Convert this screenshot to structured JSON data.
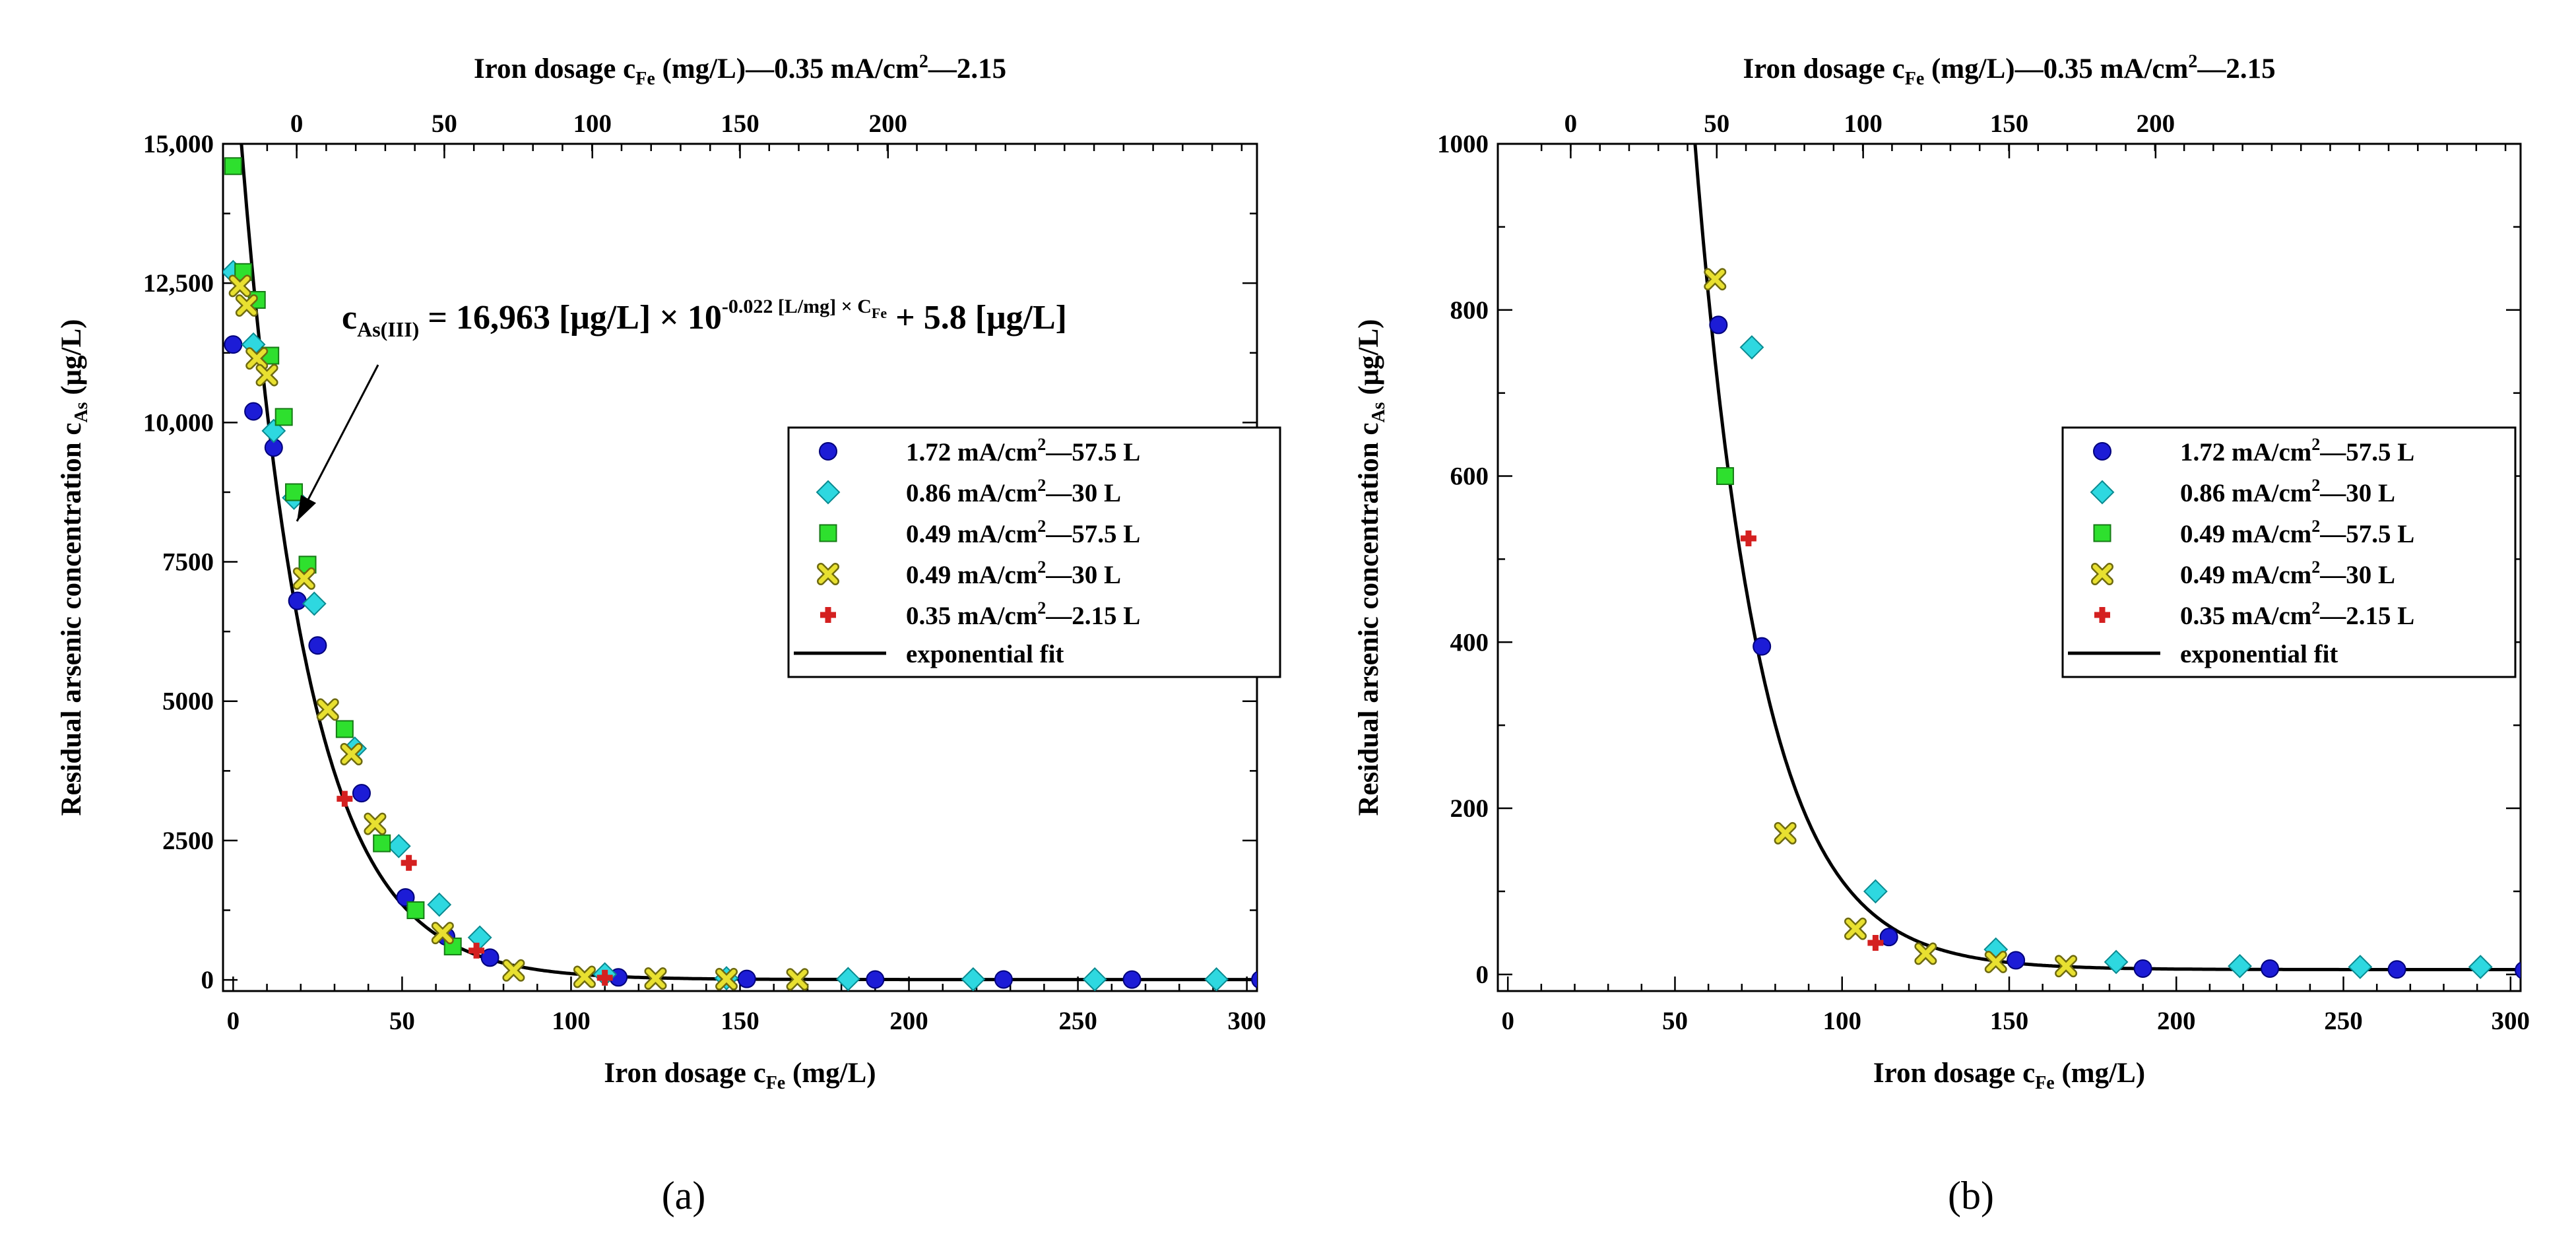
{
  "chart_data": [
    {
      "panel_label": "(a)",
      "type": "scatter",
      "xlabel": "Iron dosage c",
      "xlabel_sub": "Fe",
      "xlabel_unit": " (mg/L)",
      "ylabel": "Residual arsenic concentration c",
      "ylabel_sub": "As",
      "ylabel_unit": " (μg/L)",
      "top_axis_label": {
        "pre": "Iron dosage c",
        "sub": "Fe",
        "mid": " (mg/L)—0.35 mA/cm",
        "sup": "2",
        "post": "—2.15"
      },
      "xlim": [
        -3,
        303
      ],
      "ylim": [
        -200,
        15000
      ],
      "x_ticks": [
        0,
        50,
        100,
        150,
        200,
        250,
        300
      ],
      "x_tick_labels": [
        "0",
        "50",
        "100",
        "150",
        "200",
        "250",
        "300"
      ],
      "y_ticks": [
        0,
        2500,
        5000,
        7500,
        10000,
        12500,
        15000
      ],
      "y_tick_labels": [
        "0",
        "2500",
        "5000",
        "7500",
        "10,000",
        "12,500",
        "15,000"
      ],
      "top_ticks_bottom_units": [
        18.8,
        62.5,
        106.3,
        150,
        193.8
      ],
      "top_tick_labels": [
        "0",
        "50",
        "100",
        "150",
        "200"
      ],
      "equation": {
        "lhs": "c",
        "lhs_sub": "As(III)",
        "part1": " = 16,963 [μg/L] × 10",
        "exp": "-0.022 [L/mg] × C",
        "exp_sub": "Fe",
        "part2": " + 5.8 [μg/L]"
      },
      "legend_position": "right",
      "fit": {
        "name": "exponential fit",
        "a": 16963,
        "k": 0.022,
        "c": 5.8
      },
      "series": [
        {
          "name": "1.72 mA/cm²—57.5 L",
          "name_main": "1.72 mA/cm",
          "name_sup": "2",
          "name_post": "—57.5 L",
          "marker": "circle",
          "color": "#1c1cd6",
          "points": [
            [
              0,
              11400
            ],
            [
              6,
              10200
            ],
            [
              12,
              9550
            ],
            [
              19,
              6800
            ],
            [
              25,
              6000
            ],
            [
              38,
              3350
            ],
            [
              51,
              1480
            ],
            [
              63,
              780
            ],
            [
              76,
              400
            ],
            [
              114,
              45
            ],
            [
              152,
              17
            ],
            [
              190,
              7
            ],
            [
              228,
              7
            ],
            [
              266,
              6
            ],
            [
              304,
              5
            ]
          ]
        },
        {
          "name": "0.86 mA/cm²—30 L",
          "name_main": "0.86 mA/cm",
          "name_sup": "2",
          "name_post": "—30 L",
          "marker": "diamond",
          "color": "#2ed8e0",
          "points": [
            [
              0,
              12700
            ],
            [
              6,
              11400
            ],
            [
              12,
              9850
            ],
            [
              18,
              8650
            ],
            [
              24,
              6750
            ],
            [
              36,
              4150
            ],
            [
              49,
              2400
            ],
            [
              61,
              1350
            ],
            [
              73,
              760
            ],
            [
              110,
              100
            ],
            [
              146,
              30
            ],
            [
              182,
              15
            ],
            [
              219,
              10
            ],
            [
              255,
              9
            ],
            [
              291,
              9
            ]
          ]
        },
        {
          "name": "0.49 mA/cm²—57.5 L",
          "name_main": "0.49 mA/cm",
          "name_sup": "2",
          "name_post": "—57.5 L",
          "marker": "square",
          "color": "#2ee02e",
          "points": [
            [
              0,
              14600
            ],
            [
              3,
              12700
            ],
            [
              7,
              12200
            ],
            [
              11,
              11200
            ],
            [
              15,
              10100
            ],
            [
              18,
              8750
            ],
            [
              22,
              7450
            ],
            [
              33,
              4500
            ],
            [
              44,
              2450
            ],
            [
              54,
              1250
            ],
            [
              65,
              600
            ]
          ]
        },
        {
          "name": "0.49 mA/cm²—30 L",
          "name_main": "0.49 mA/cm",
          "name_sup": "2",
          "name_post": "—30 L",
          "marker": "x",
          "color": "#e8e030",
          "points": [
            [
              2,
              12450
            ],
            [
              4,
              12100
            ],
            [
              7,
              11150
            ],
            [
              10,
              10850
            ],
            [
              21,
              7200
            ],
            [
              28,
              4850
            ],
            [
              35,
              4050
            ],
            [
              42,
              2800
            ],
            [
              62,
              840
            ],
            [
              83,
              170
            ],
            [
              104,
              55
            ],
            [
              125,
              25
            ],
            [
              146,
              15
            ],
            [
              167,
              10
            ]
          ]
        },
        {
          "name": "0.35 mA/cm²—2.15 L",
          "name_main": "0.35 mA/cm",
          "name_sup": "2",
          "name_post": "—2.15 L",
          "marker": "plus",
          "color": "#d42020",
          "points": [
            [
              33,
              3250
            ],
            [
              52,
              2100
            ],
            [
              72,
              525
            ],
            [
              110,
              38
            ]
          ]
        }
      ]
    },
    {
      "panel_label": "(b)",
      "type": "scatter",
      "xlabel": "Iron dosage c",
      "xlabel_sub": "Fe",
      "xlabel_unit": " (mg/L)",
      "ylabel": "Residual arsenic concentration c",
      "ylabel_sub": "As",
      "ylabel_unit": " (μg/L)",
      "top_axis_label": {
        "pre": "Iron dosage c",
        "sub": "Fe",
        "mid": " (mg/L)—0.35 mA/cm",
        "sup": "2",
        "post": "—2.15"
      },
      "xlim": [
        -3,
        303
      ],
      "ylim": [
        -20,
        1000
      ],
      "x_ticks": [
        0,
        50,
        100,
        150,
        200,
        250,
        300
      ],
      "x_tick_labels": [
        "0",
        "50",
        "100",
        "150",
        "200",
        "250",
        "300"
      ],
      "y_ticks": [
        0,
        200,
        400,
        600,
        800,
        1000
      ],
      "y_tick_labels": [
        "0",
        "200",
        "400",
        "600",
        "800",
        "1000"
      ],
      "top_ticks_bottom_units": [
        18.8,
        62.5,
        106.3,
        150,
        193.8
      ],
      "top_tick_labels": [
        "0",
        "50",
        "100",
        "150",
        "200"
      ],
      "legend_position": "right",
      "fit": {
        "name": "exponential fit",
        "a": 16963,
        "k": 0.022,
        "c": 5.8
      },
      "series": [
        {
          "name": "1.72 mA/cm²—57.5 L",
          "name_main": "1.72 mA/cm",
          "name_sup": "2",
          "name_post": "—57.5 L",
          "marker": "circle",
          "color": "#1c1cd6",
          "points": [
            [
              63,
              782
            ],
            [
              76,
              395
            ],
            [
              114,
              45
            ],
            [
              152,
              17
            ],
            [
              190,
              7
            ],
            [
              228,
              7
            ],
            [
              266,
              6
            ],
            [
              304,
              5
            ]
          ]
        },
        {
          "name": "0.86 mA/cm²—30 L",
          "name_main": "0.86 mA/cm",
          "name_sup": "2",
          "name_post": "—30 L",
          "marker": "diamond",
          "color": "#2ed8e0",
          "points": [
            [
              73,
              755
            ],
            [
              110,
              100
            ],
            [
              146,
              30
            ],
            [
              182,
              15
            ],
            [
              219,
              10
            ],
            [
              255,
              9
            ],
            [
              291,
              9
            ]
          ]
        },
        {
          "name": "0.49 mA/cm²—57.5 L",
          "name_main": "0.49 mA/cm",
          "name_sup": "2",
          "name_post": "—57.5 L",
          "marker": "square",
          "color": "#2ee02e",
          "points": [
            [
              65,
              600
            ]
          ]
        },
        {
          "name": "0.49 mA/cm²—30 L",
          "name_main": "0.49 mA/cm",
          "name_sup": "2",
          "name_post": "—30 L",
          "marker": "x",
          "color": "#e8e030",
          "points": [
            [
              62,
              837
            ],
            [
              83,
              170
            ],
            [
              104,
              55
            ],
            [
              125,
              25
            ],
            [
              146,
              15
            ],
            [
              167,
              10
            ]
          ]
        },
        {
          "name": "0.35 mA/cm²—2.15 L",
          "name_main": "0.35 mA/cm",
          "name_sup": "2",
          "name_post": "—2.15 L",
          "marker": "plus",
          "color": "#d42020",
          "points": [
            [
              72,
              525
            ],
            [
              110,
              38
            ]
          ]
        }
      ]
    }
  ]
}
